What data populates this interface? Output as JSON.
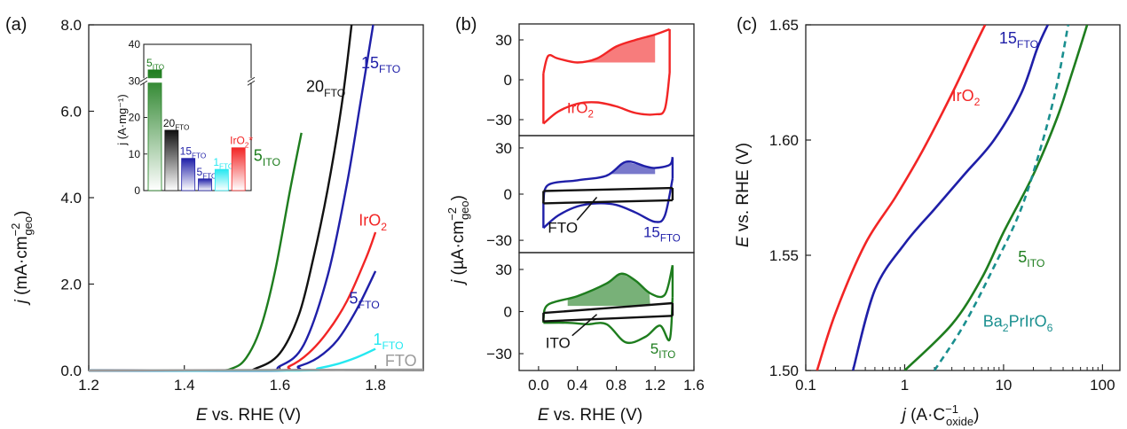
{
  "colors": {
    "green": "#1e7d1e",
    "black": "#111111",
    "blue": "#1f1fa8",
    "red": "#f22525",
    "cyan": "#25e8f0",
    "grey": "#9a9a9a",
    "teal": "#1a8f8f"
  },
  "chart_data": [
    {
      "type": "line",
      "panel_label": "(a)",
      "xlabel": "E vs. RHE (V)",
      "ylabel": "j (mA·cm⁻²geo)",
      "xlim": [
        1.2,
        1.9
      ],
      "ylim": [
        0,
        8
      ],
      "xticks": [
        "1.2",
        "1.4",
        "1.6",
        "1.8"
      ],
      "yticks": [
        "0.0",
        "2.0",
        "4.0",
        "6.0",
        "8.0"
      ],
      "series": [
        {
          "name": "5ITO",
          "color": "green",
          "x": [
            1.2,
            1.45,
            1.5,
            1.53,
            1.56,
            1.59,
            1.62,
            1.645
          ],
          "y": [
            0,
            0,
            0.05,
            0.3,
            1.0,
            2.3,
            4.1,
            5.5
          ]
        },
        {
          "name": "20FTO",
          "color": "black",
          "x": [
            1.2,
            1.5,
            1.55,
            1.6,
            1.64,
            1.67,
            1.7,
            1.73,
            1.75
          ],
          "y": [
            0,
            0,
            0.05,
            0.4,
            1.3,
            2.6,
            4.2,
            6.2,
            8.0
          ]
        },
        {
          "name": "15FTO",
          "color": "blue",
          "x": [
            1.2,
            1.55,
            1.6,
            1.65,
            1.7,
            1.74,
            1.77,
            1.795
          ],
          "y": [
            0,
            0,
            0.1,
            0.6,
            2.2,
            4.3,
            6.3,
            8.0
          ]
        },
        {
          "name": "IrO2",
          "color": "red",
          "x": [
            1.2,
            1.58,
            1.62,
            1.66,
            1.7,
            1.74,
            1.78,
            1.8
          ],
          "y": [
            0,
            0,
            0.1,
            0.4,
            0.9,
            1.6,
            2.6,
            3.2
          ]
        },
        {
          "name": "5FTO",
          "color": "blue",
          "x": [
            1.2,
            1.6,
            1.64,
            1.68,
            1.72,
            1.76,
            1.8
          ],
          "y": [
            0,
            0,
            0.1,
            0.3,
            0.7,
            1.4,
            2.3
          ]
        },
        {
          "name": "1FTO",
          "color": "cyan",
          "x": [
            1.2,
            1.64,
            1.68,
            1.72,
            1.76,
            1.8
          ],
          "y": [
            0,
            0,
            0.05,
            0.15,
            0.3,
            0.5
          ]
        },
        {
          "name": "FTO",
          "color": "grey",
          "x": [
            1.2,
            1.9
          ],
          "y": [
            0,
            0.02
          ]
        }
      ],
      "labels": [
        {
          "text": "5",
          "sub": "ITO",
          "color": "green",
          "x": 1.545,
          "y": 4.85
        },
        {
          "text": "20",
          "sub": "FTO",
          "color": "black",
          "x": 1.655,
          "y": 6.45
        },
        {
          "text": "15",
          "sub": "FTO",
          "color": "blue",
          "x": 1.77,
          "y": 7.0
        },
        {
          "text": "IrO",
          "sub": "2",
          "color": "red",
          "x": 1.765,
          "y": 3.35
        },
        {
          "text": "5",
          "sub": "FTO",
          "color": "blue",
          "x": 1.745,
          "y": 1.55
        },
        {
          "text": "1",
          "sub": "FTO",
          "color": "cyan",
          "x": 1.795,
          "y": 0.6
        },
        {
          "text": "FTO",
          "sub": "",
          "color": "grey",
          "x": 1.82,
          "y": 0.1
        }
      ],
      "inset": {
        "type": "bar",
        "ylabel": "j (A·mg⁻¹)",
        "yticks": [
          "0",
          "10",
          "20",
          "30",
          "40"
        ],
        "axis_break": true,
        "categories": [
          "5ITO",
          "20FTO",
          "15FTO",
          "5FTO",
          "1FTO",
          "IrO2*"
        ],
        "values": [
          33,
          16.5,
          8.8,
          3.2,
          5.8,
          11.7
        ],
        "colors": [
          "green",
          "black",
          "blue",
          "blue",
          "cyan",
          "red"
        ],
        "labels": [
          {
            "text": "5",
            "sub": "ITO"
          },
          {
            "text": "20",
            "sub": "FTO"
          },
          {
            "text": "15",
            "sub": "FTO"
          },
          {
            "text": "5",
            "sub": "FTO"
          },
          {
            "text": "1",
            "sub": "FTO"
          },
          {
            "text": "IrO",
            "sub": "2",
            "post": "*"
          }
        ]
      }
    },
    {
      "type": "line",
      "panel_label": "(b)",
      "xlabel": "E vs. RHE (V)",
      "ylabel": "j (µA·cm⁻²geo)",
      "xlim": [
        -0.2,
        1.6
      ],
      "xticks": [
        "0.0",
        "0.4",
        "0.8",
        "1.2",
        "1.6"
      ],
      "subpanels": [
        {
          "ylim": [
            -42,
            42
          ],
          "yticks": [
            "30",
            "0",
            "-30"
          ],
          "series": [
            {
              "name": "IrO2",
              "color": "red",
              "type": "cv",
              "upper": {
                "x": [
                  0.05,
                  0.1,
                  0.2,
                  0.4,
                  0.6,
                  0.8,
                  1.0,
                  1.2,
                  1.35
                ],
                "y": [
                  5,
                  18,
                  16,
                  13,
                  16,
                  25,
                  30,
                  34,
                  38
                ]
              },
              "lower": {
                "x": [
                  0.05,
                  0.2,
                  0.4,
                  0.6,
                  0.8,
                  1.0,
                  1.2,
                  1.3,
                  1.35
                ],
                "y": [
                  -33,
                  -24,
                  -18,
                  -17,
                  -20,
                  -25,
                  -26,
                  -22,
                  5
                ]
              },
              "shade": {
                "x0": 0.4,
                "x1": 1.2,
                "base": 13
              }
            }
          ],
          "labels": [
            {
              "text": "IrO",
              "sub": "2",
              "color": "red",
              "x": 0.43,
              "y": -25
            }
          ]
        },
        {
          "ylim": [
            -38,
            38
          ],
          "yticks": [
            "30",
            "0",
            "-30"
          ],
          "series": [
            {
              "name": "15FTO",
              "color": "blue",
              "type": "cv",
              "upper": {
                "x": [
                  0.05,
                  0.1,
                  0.4,
                  0.7,
                  0.9,
                  1.1,
                  1.2,
                  1.35,
                  1.38
                ],
                "y": [
                  -5,
                  6,
                  9,
                  12,
                  21,
                  18,
                  17,
                  19,
                  24
                ]
              },
              "lower": {
                "x": [
                  0.05,
                  0.2,
                  0.4,
                  0.6,
                  0.8,
                  1.0,
                  1.2,
                  1.3,
                  1.38
                ],
                "y": [
                  -22,
                  -14,
                  -8,
                  -6,
                  -7,
                  -12,
                  -18,
                  -14,
                  10
                ]
              },
              "shade": {
                "x0": 0.7,
                "x1": 1.2,
                "base": 13
              }
            },
            {
              "name": "FTO",
              "color": "black",
              "type": "cv",
              "upper": {
                "x": [
                  0.05,
                  1.38
                ],
                "y": [
                  2,
                  4
                ]
              },
              "lower": {
                "x": [
                  0.05,
                  1.38
                ],
                "y": [
                  -6,
                  -4
                ]
              }
            }
          ],
          "labels": [
            {
              "text": "FTO",
              "sub": "",
              "color": "black",
              "x": 0.25,
              "y": -25
            },
            {
              "text": "15",
              "sub": "FTO",
              "color": "blue",
              "x": 1.27,
              "y": -28
            }
          ]
        },
        {
          "ylim": [
            -42,
            42
          ],
          "yticks": [
            "30",
            "0",
            "-30"
          ],
          "series": [
            {
              "name": "5ITO",
              "color": "green",
              "type": "cv",
              "upper": {
                "x": [
                  0.05,
                  0.1,
                  0.4,
                  0.7,
                  0.85,
                  1.0,
                  1.15,
                  1.3,
                  1.38
                ],
                "y": [
                  -5,
                  5,
                  11,
                  20,
                  27,
                  22,
                  13,
                  12,
                  33
                ]
              },
              "lower": {
                "x": [
                  0.05,
                  0.3,
                  0.5,
                  0.7,
                  0.9,
                  1.1,
                  1.25,
                  1.35,
                  1.38
                ],
                "y": [
                  -8,
                  -8,
                  -9,
                  -9,
                  -22,
                  -18,
                  -10,
                  -20,
                  10
                ]
              },
              "shade": {
                "x0": 0.3,
                "x1": 1.15,
                "base": 4
              }
            },
            {
              "name": "ITO",
              "color": "black",
              "type": "cv",
              "upper": {
                "x": [
                  0.05,
                  1.38
                ],
                "y": [
                  -1,
                  6
                ]
              },
              "lower": {
                "x": [
                  0.05,
                  1.38
                ],
                "y": [
                  -7,
                  -3
                ]
              }
            }
          ],
          "labels": [
            {
              "text": "ITO",
              "sub": "",
              "color": "black",
              "x": 0.2,
              "y": -26
            },
            {
              "text": "5",
              "sub": "ITO",
              "color": "green",
              "x": 1.28,
              "y": -30
            }
          ]
        }
      ]
    },
    {
      "type": "line",
      "panel_label": "(c)",
      "xlabel": "j (A·C⁻¹oxide)",
      "ylabel": "E vs. RHE (V)",
      "xscale": "log",
      "xlim": [
        0.1,
        150
      ],
      "ylim": [
        1.5,
        1.65
      ],
      "xticks": [
        "0.1",
        "1",
        "10",
        "100"
      ],
      "yticks": [
        "1.50",
        "1.55",
        "1.60",
        "1.65"
      ],
      "series": [
        {
          "name": "IrO2",
          "color": "red",
          "x": [
            0.13,
            0.2,
            0.4,
            0.8,
            1.5,
            3,
            5,
            6.5
          ],
          "y": [
            1.5,
            1.525,
            1.555,
            1.575,
            1.595,
            1.62,
            1.64,
            1.65
          ]
        },
        {
          "name": "15FTO",
          "color": "blue",
          "x": [
            0.3,
            0.5,
            1,
            2,
            4,
            8,
            15,
            22,
            28
          ],
          "y": [
            1.5,
            1.535,
            1.555,
            1.57,
            1.585,
            1.6,
            1.62,
            1.64,
            1.65
          ]
        },
        {
          "name": "5ITO",
          "color": "green",
          "x": [
            1,
            3,
            6,
            10,
            20,
            35,
            50,
            70
          ],
          "y": [
            1.5,
            1.52,
            1.54,
            1.56,
            1.585,
            1.61,
            1.63,
            1.65
          ]
        },
        {
          "name": "Ba2PrIrO6",
          "color": "teal",
          "dashed": true,
          "x": [
            2,
            4,
            8,
            15,
            25,
            35,
            45
          ],
          "y": [
            1.5,
            1.52,
            1.545,
            1.57,
            1.6,
            1.625,
            1.65
          ]
        }
      ],
      "labels": [
        {
          "text": "IrO",
          "sub": "2",
          "color": "red",
          "x": 3.0,
          "y": 1.617
        },
        {
          "text": "15",
          "sub": "FTO",
          "color": "blue",
          "x": 9.0,
          "y": 1.642
        },
        {
          "text": "5",
          "sub": "ITO",
          "color": "green",
          "x": 14,
          "y": 1.547
        },
        {
          "text": "Ba",
          "sub": "2",
          "post": "PrIrO",
          "sub2": "6",
          "color": "teal",
          "x": 6.2,
          "y": 1.519
        }
      ]
    }
  ]
}
